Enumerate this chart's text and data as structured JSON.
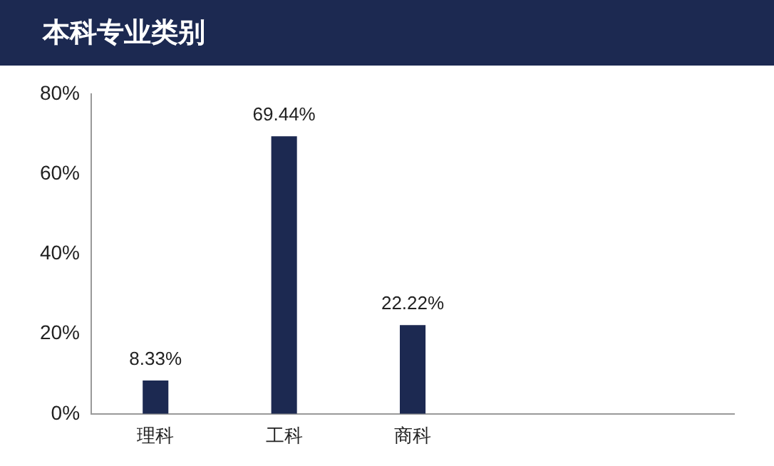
{
  "chart_data": {
    "type": "bar",
    "title": "本科专业类别",
    "categories": [
      "理科",
      "工科",
      "商科",
      null,
      null
    ],
    "values": [
      8.33,
      69.44,
      22.22,
      null,
      null
    ],
    "color": "#1c2951",
    "ylim": [
      0,
      80
    ],
    "yticks": [
      {
        "value": 0,
        "label": "0%"
      },
      {
        "value": 20,
        "label": "20%"
      },
      {
        "value": 40,
        "label": "40%"
      },
      {
        "value": 60,
        "label": "60%"
      },
      {
        "value": 80,
        "label": "80%"
      }
    ],
    "value_labels": [
      "8.33%",
      "69.44%",
      "22.22%",
      null,
      null
    ],
    "grid": false,
    "legend": false
  }
}
